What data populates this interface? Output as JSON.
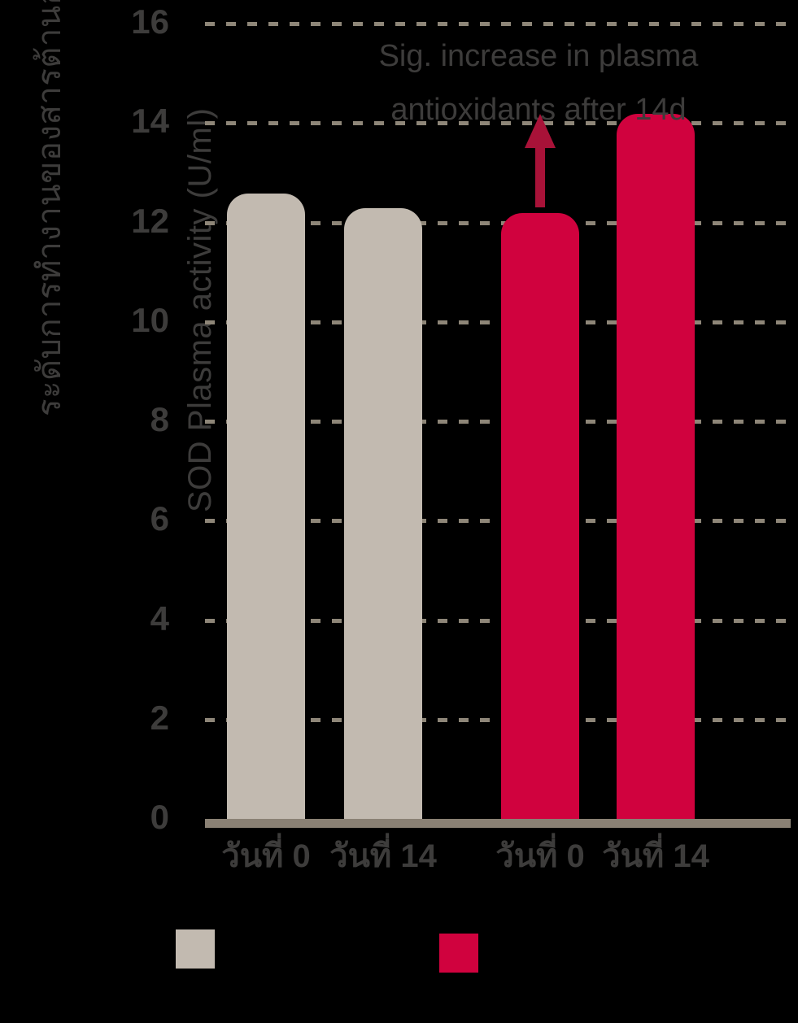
{
  "colors": {
    "background": "#000000",
    "bar_beige": "#c2bab0",
    "bar_red": "#d0023e",
    "arrow": "#a81238",
    "grid": "#8e8678",
    "axis": "#8a8174",
    "text": "#3d3c3b"
  },
  "y_axis": {
    "label_thai": "ระดับการทำงานของสารต้านอนุมูลอิสระ",
    "label_english": "SOD Plasma activity  (U/ml)",
    "ticks": [
      0,
      2,
      4,
      6,
      8,
      10,
      12,
      14,
      16
    ]
  },
  "x_axis": {
    "labels": [
      "วันที่ 0",
      "วันที่ 14",
      "วันที่ 0",
      "วันที่ 14"
    ]
  },
  "annotation": {
    "line1": "Sig. increase in plasma",
    "line2": "antioxidants after 14d"
  },
  "legend": {
    "entries": [
      {
        "label": "",
        "color": "#c2bab0"
      },
      {
        "label": "",
        "color": "#d0023e"
      }
    ]
  },
  "chart_data": {
    "type": "bar",
    "title": "",
    "xlabel": "",
    "ylabel_thai": "ระดับการทำงานของสารต้านอนุมูลอิสระ",
    "ylabel_english": "SOD Plasma activity  (U/ml)",
    "ylim": [
      0,
      16
    ],
    "yticks": [
      0,
      2,
      4,
      6,
      8,
      10,
      12,
      14,
      16
    ],
    "grid": "horizontal-dashed",
    "legend_position": "bottom",
    "categories": [
      "วันที่ 0",
      "วันที่ 14",
      "วันที่ 0",
      "วันที่ 14"
    ],
    "bars": [
      {
        "category": "วันที่ 0",
        "value": 12.6,
        "color": "#c2bab0"
      },
      {
        "category": "วันที่ 14",
        "value": 12.3,
        "color": "#c2bab0"
      },
      {
        "category": "วันที่ 0",
        "value": 12.2,
        "color": "#d0023e"
      },
      {
        "category": "วันที่ 14",
        "value": 14.2,
        "color": "#d0023e"
      }
    ],
    "groups": [
      {
        "legend_label": "",
        "color": "#c2bab0",
        "values": [
          12.6,
          12.3
        ]
      },
      {
        "legend_label": "",
        "color": "#d0023e",
        "values": [
          12.2,
          14.2
        ]
      }
    ],
    "annotation": {
      "text": "Sig. increase in plasma antioxidants after 14d",
      "arrow": "up",
      "arrow_points_to_bar": 2
    }
  }
}
